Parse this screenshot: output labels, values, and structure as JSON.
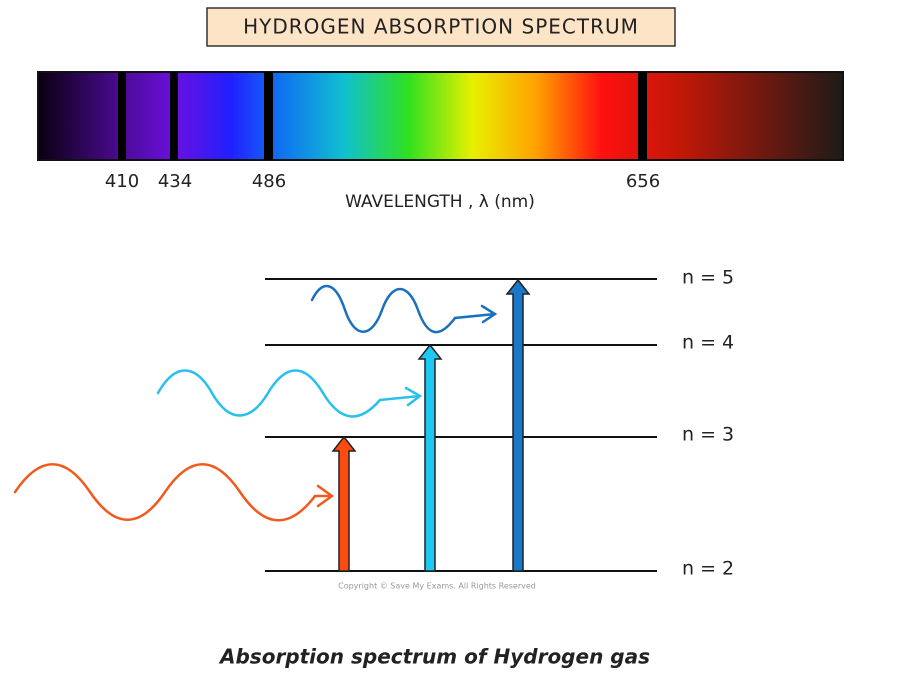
{
  "title": "HYDROGEN ABSORPTION SPECTRUM",
  "spectrum": {
    "lines": [
      "410",
      "434",
      "486",
      "656"
    ],
    "axis_label": "WAVELENGTH , λ (nm)"
  },
  "levels": [
    "n = 5",
    "n = 4",
    "n = 3",
    "n = 2"
  ],
  "copyright": "Copyright © Save My Exams. All Rights Reserved",
  "caption": "Absorption spectrum of Hydrogen gas"
}
